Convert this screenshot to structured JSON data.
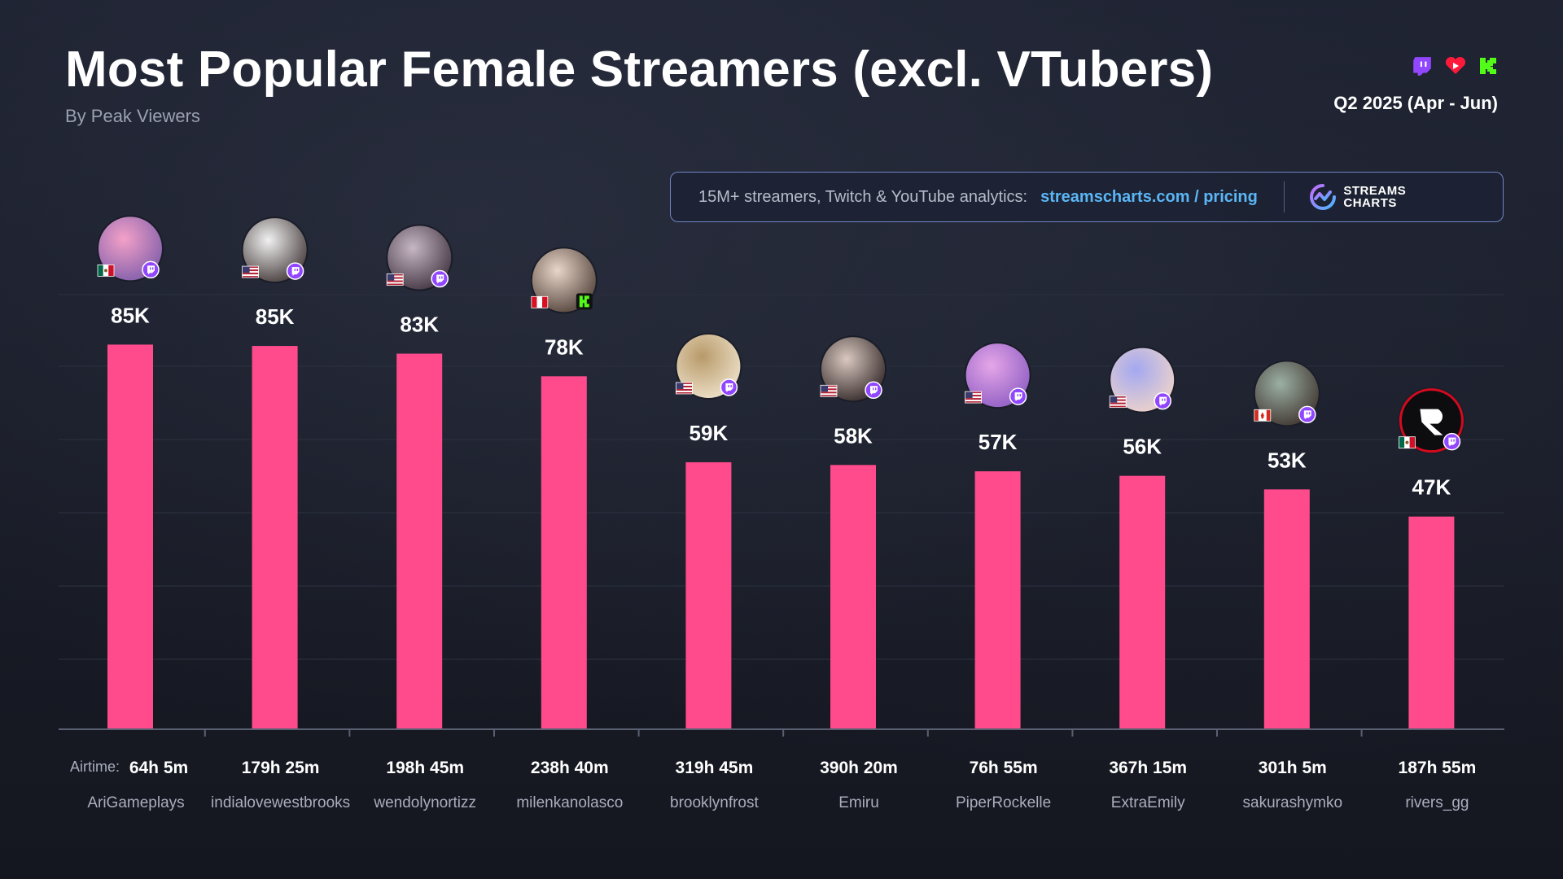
{
  "header": {
    "title": "Most Popular Female Streamers (excl. VTubers)",
    "subtitle": "By Peak Viewers",
    "period": "Q2 2025 (Apr - Jun)",
    "platform_icons": [
      "twitch-icon",
      "youtube-icon",
      "kick-icon"
    ]
  },
  "promo": {
    "text": "15M+ streamers, Twitch & YouTube analytics:",
    "link": "streamscharts.com / pricing",
    "logo_line1": "STREAMS",
    "logo_line2": "CHARTS"
  },
  "colors": {
    "bar": "#ff4b8b",
    "twitch": "#9146ff",
    "kick": "#53fc18",
    "youtube": "#ff0000",
    "link": "#5ab6f5"
  },
  "chart_data": {
    "type": "bar",
    "title": "Most Popular Female Streamers (excl. VTubers)",
    "subtitle": "By Peak Viewers",
    "airtime_prefix": "Airtime:",
    "categories": [
      "AriGameplays",
      "indialovewestbrooks",
      "wendolynortizz",
      "milenkanolasco",
      "brooklynfrost",
      "Emiru",
      "PiperRockelle",
      "ExtraEmily",
      "sakurashymko",
      "rivers_gg"
    ],
    "values": [
      85000,
      84700,
      83000,
      78000,
      59000,
      58400,
      57000,
      56000,
      53000,
      47000
    ],
    "value_labels": [
      "85K",
      "85K",
      "83K",
      "78K",
      "59K",
      "58K",
      "57K",
      "56K",
      "53K",
      "47K"
    ],
    "airtime": [
      "64h 5m",
      "179h 25m",
      "198h 45m",
      "238h 40m",
      "319h 45m",
      "390h 20m",
      "76h 55m",
      "367h 15m",
      "301h 5m",
      "187h 55m"
    ],
    "country": [
      "MX",
      "US",
      "US",
      "PE",
      "US",
      "US",
      "US",
      "US",
      "CA",
      "MX"
    ],
    "platform": [
      "twitch",
      "twitch",
      "twitch",
      "kick",
      "twitch",
      "twitch",
      "twitch",
      "twitch",
      "twitch",
      "twitch"
    ],
    "ylim": [
      0,
      100000
    ],
    "grid": true,
    "legend": "none"
  }
}
